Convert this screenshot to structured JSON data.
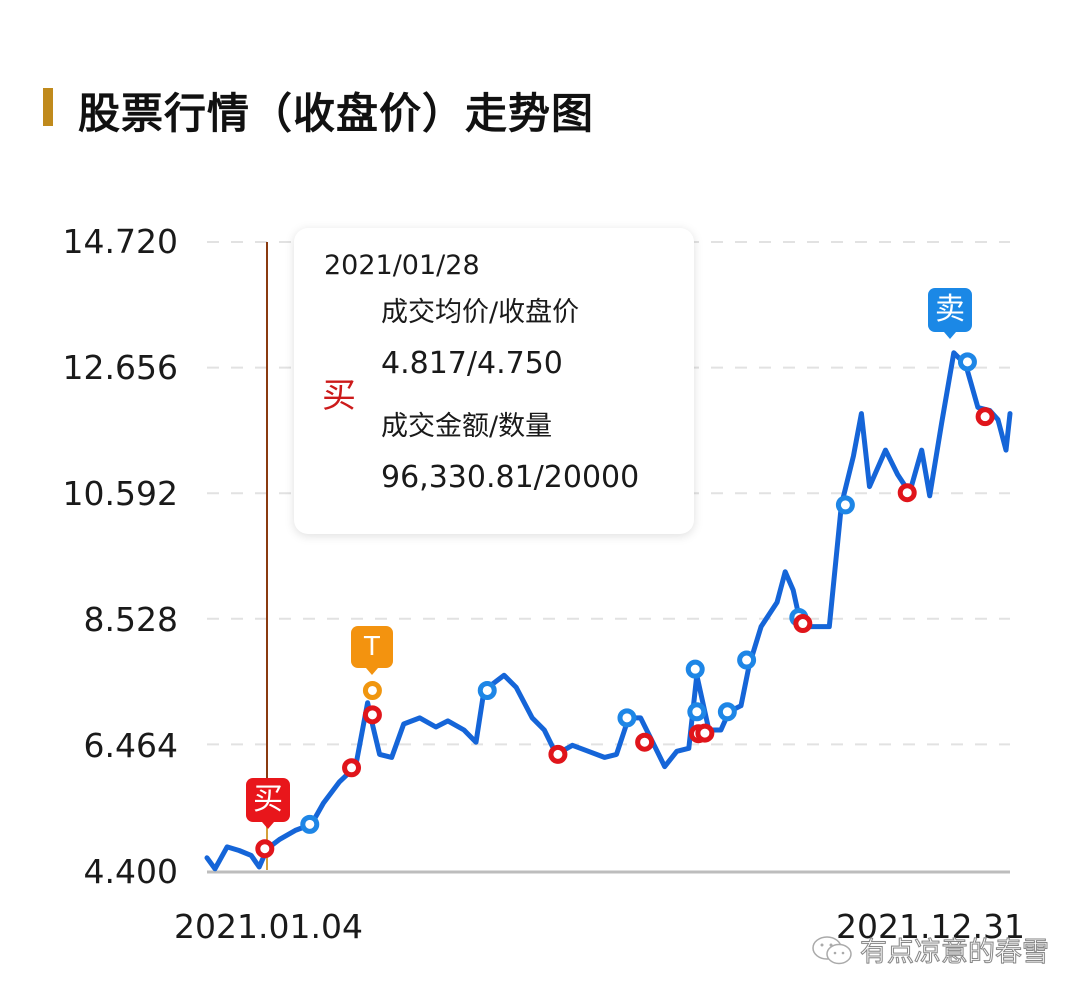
{
  "title": "股票行情（收盘价）走势图",
  "colors": {
    "title_accent": "#c08a1c",
    "line": "#1565d8",
    "grid": "#e2e2e2",
    "axis": "#bdbdbd",
    "crosshair": "#8a3a10",
    "buy_marker": "#e0151b",
    "sell_marker": "#1e86e6",
    "t_marker": "#f0960f"
  },
  "y_axis": {
    "ticks": [
      "14.720",
      "12.656",
      "10.592",
      "8.528",
      "6.464",
      "4.400"
    ]
  },
  "x_axis": {
    "start_label": "2021.01.04",
    "end_label": "2021.12.31"
  },
  "tooltip": {
    "date": "2021/01/28",
    "side": "买",
    "label_price": "成交均价/收盘价",
    "value_price": "4.817/4.750",
    "label_amount": "成交金额/数量",
    "value_amount": "96,330.81/20000"
  },
  "badges": {
    "buy": "买",
    "t": "T",
    "sell": "卖"
  },
  "watermark": "有点凉意的春雪",
  "chart_data": {
    "type": "line",
    "title": "股票行情（收盘价）走势图",
    "xlabel": "",
    "ylabel": "",
    "x_range": [
      "2021.01.04",
      "2021.12.31"
    ],
    "ylim": [
      4.4,
      14.72
    ],
    "y_ticks": [
      4.4,
      6.464,
      8.528,
      10.592,
      12.656,
      14.72
    ],
    "grid": true,
    "legend": "none",
    "series": [
      {
        "name": "收盘价",
        "points_xy_fraction": [
          [
            0.0,
            4.6
          ],
          [
            0.01,
            4.42
          ],
          [
            0.025,
            4.78
          ],
          [
            0.04,
            4.72
          ],
          [
            0.055,
            4.64
          ],
          [
            0.065,
            4.45
          ],
          [
            0.075,
            4.75
          ],
          [
            0.09,
            4.9
          ],
          [
            0.11,
            5.05
          ],
          [
            0.13,
            5.15
          ],
          [
            0.145,
            5.5
          ],
          [
            0.165,
            5.85
          ],
          [
            0.185,
            6.1
          ],
          [
            0.2,
            7.15
          ],
          [
            0.205,
            6.85
          ],
          [
            0.215,
            6.3
          ],
          [
            0.23,
            6.25
          ],
          [
            0.245,
            6.8
          ],
          [
            0.265,
            6.9
          ],
          [
            0.285,
            6.75
          ],
          [
            0.3,
            6.85
          ],
          [
            0.32,
            6.7
          ],
          [
            0.335,
            6.5
          ],
          [
            0.345,
            7.35
          ],
          [
            0.37,
            7.6
          ],
          [
            0.385,
            7.4
          ],
          [
            0.405,
            6.9
          ],
          [
            0.42,
            6.7
          ],
          [
            0.435,
            6.3
          ],
          [
            0.455,
            6.45
          ],
          [
            0.475,
            6.35
          ],
          [
            0.495,
            6.25
          ],
          [
            0.51,
            6.3
          ],
          [
            0.525,
            6.9
          ],
          [
            0.54,
            6.9
          ],
          [
            0.555,
            6.5
          ],
          [
            0.57,
            6.1
          ],
          [
            0.585,
            6.35
          ],
          [
            0.6,
            6.4
          ],
          [
            0.61,
            7.6
          ],
          [
            0.625,
            6.7
          ],
          [
            0.64,
            6.7
          ],
          [
            0.65,
            7.0
          ],
          [
            0.665,
            7.1
          ],
          [
            0.675,
            7.75
          ],
          [
            0.69,
            8.4
          ],
          [
            0.71,
            8.8
          ],
          [
            0.72,
            9.3
          ],
          [
            0.73,
            9.0
          ],
          [
            0.74,
            8.4
          ],
          [
            0.76,
            8.4
          ],
          [
            0.775,
            8.4
          ],
          [
            0.79,
            10.4
          ],
          [
            0.805,
            11.2
          ],
          [
            0.815,
            11.9
          ],
          [
            0.825,
            10.7
          ],
          [
            0.835,
            11.0
          ],
          [
            0.845,
            11.3
          ],
          [
            0.86,
            10.9
          ],
          [
            0.875,
            10.6
          ],
          [
            0.89,
            11.3
          ],
          [
            0.9,
            10.55
          ],
          [
            0.915,
            11.75
          ],
          [
            0.93,
            12.9
          ],
          [
            0.945,
            12.7
          ],
          [
            0.96,
            12.0
          ],
          [
            0.975,
            11.95
          ],
          [
            0.985,
            11.8
          ],
          [
            0.995,
            11.3
          ],
          [
            1.0,
            11.9
          ]
        ]
      }
    ],
    "markers": [
      {
        "type": "buy",
        "x": 0.072,
        "y": 4.75,
        "badge": "买",
        "selected": true,
        "date": "2021/01/28"
      },
      {
        "type": "sell",
        "x": 0.128,
        "y": 5.15
      },
      {
        "type": "buy",
        "x": 0.18,
        "y": 6.08
      },
      {
        "type": "t",
        "x": 0.206,
        "y": 7.35,
        "badge": "T"
      },
      {
        "type": "buy",
        "x": 0.206,
        "y": 6.95
      },
      {
        "type": "sell",
        "x": 0.349,
        "y": 7.35
      },
      {
        "type": "buy",
        "x": 0.437,
        "y": 6.3
      },
      {
        "type": "sell",
        "x": 0.523,
        "y": 6.9
      },
      {
        "type": "buy",
        "x": 0.545,
        "y": 6.5
      },
      {
        "type": "sell",
        "x": 0.608,
        "y": 7.7
      },
      {
        "type": "sell",
        "x": 0.61,
        "y": 7.0
      },
      {
        "type": "buy",
        "x": 0.612,
        "y": 6.64
      },
      {
        "type": "buy",
        "x": 0.62,
        "y": 6.65
      },
      {
        "type": "sell",
        "x": 0.648,
        "y": 7.0
      },
      {
        "type": "sell",
        "x": 0.672,
        "y": 7.85
      },
      {
        "type": "sell",
        "x": 0.737,
        "y": 8.55
      },
      {
        "type": "buy",
        "x": 0.742,
        "y": 8.45
      },
      {
        "type": "sell",
        "x": 0.795,
        "y": 10.4
      },
      {
        "type": "buy",
        "x": 0.872,
        "y": 10.6
      },
      {
        "type": "sell",
        "x": 0.947,
        "y": 12.75,
        "badge": "卖"
      },
      {
        "type": "buy",
        "x": 0.969,
        "y": 11.85
      }
    ]
  }
}
